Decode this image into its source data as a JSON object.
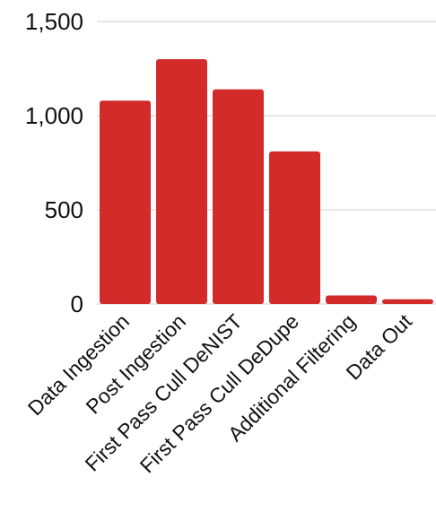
{
  "chart_data": {
    "type": "bar",
    "categories": [
      "Data Ingestion",
      "Post Ingestion",
      "First Pass Cull DeNIST",
      "First Pass Cull DeDupe",
      "Additional Filtering",
      "Data Out"
    ],
    "values": [
      1080,
      1300,
      1140,
      810,
      45,
      25
    ],
    "ylim": [
      0,
      1500
    ],
    "yticks": [
      0,
      500,
      1000,
      1500
    ],
    "ytick_labels": [
      "0",
      "500",
      "1,000",
      "1,500"
    ],
    "bar_color": "#d32a2a",
    "grid": true,
    "title": "",
    "xlabel": "",
    "ylabel": ""
  }
}
